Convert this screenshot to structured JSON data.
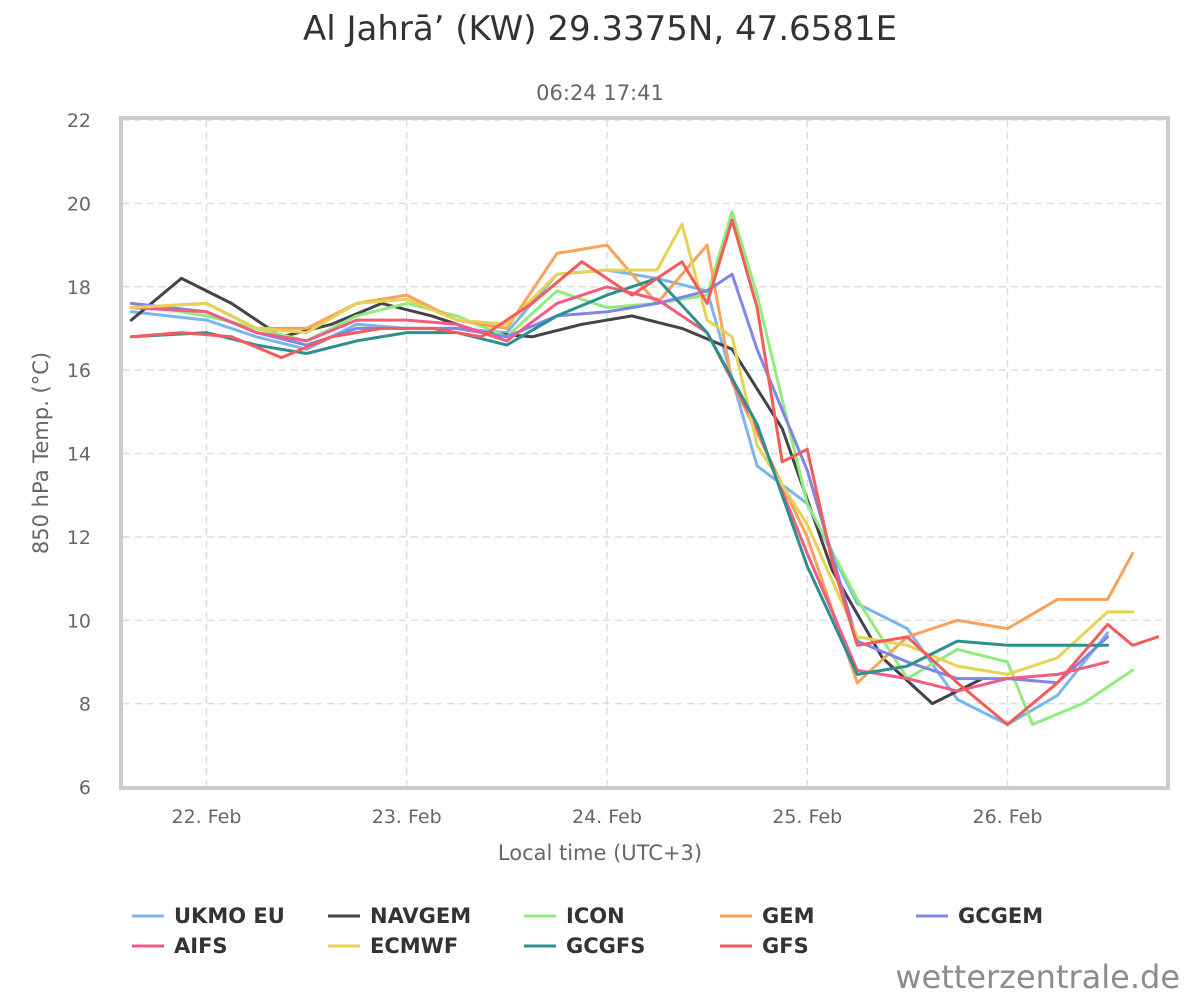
{
  "chart_data": {
    "type": "line",
    "title": "Al Jahrā’ (KW) 29.3375N, 47.6581E",
    "subtitle": "06:24 17:41",
    "xlabel": "Local time (UTC+3)",
    "ylabel": "850 hPa Temp. (°C)",
    "ylim": [
      6,
      22
    ],
    "yticks": [
      6,
      8,
      10,
      12,
      14,
      16,
      18,
      20,
      22
    ],
    "xlim": [
      "2024-02-21 14:00",
      "2024-02-26 19:00"
    ],
    "xticks": [
      {
        "x": "2024-02-22 00:00",
        "label": "22. Feb"
      },
      {
        "x": "2024-02-23 00:00",
        "label": "23. Feb"
      },
      {
        "x": "2024-02-24 00:00",
        "label": "24. Feb"
      },
      {
        "x": "2024-02-25 00:00",
        "label": "25. Feb"
      },
      {
        "x": "2024-02-26 00:00",
        "label": "26. Feb"
      }
    ],
    "grid": true,
    "legend_position": "bottom",
    "series": [
      {
        "name": "UKMO EU",
        "color": "#7cb5ec",
        "x": [
          "2024-02-21 15:00",
          "2024-02-22 00:00",
          "2024-02-22 06:00",
          "2024-02-22 12:00",
          "2024-02-22 18:00",
          "2024-02-23 00:00",
          "2024-02-23 06:00",
          "2024-02-23 12:00",
          "2024-02-23 18:00",
          "2024-02-24 00:00",
          "2024-02-24 06:00",
          "2024-02-24 12:00",
          "2024-02-24 18:00",
          "2024-02-25 00:00",
          "2024-02-25 06:00",
          "2024-02-25 12:00",
          "2024-02-25 18:00",
          "2024-02-26 00:00",
          "2024-02-26 06:00",
          "2024-02-26 12:00"
        ],
        "y": [
          17.4,
          17.2,
          16.8,
          16.5,
          17.1,
          17.0,
          17.0,
          16.9,
          18.3,
          18.4,
          18.2,
          17.9,
          13.7,
          12.8,
          10.4,
          9.8,
          8.1,
          7.5,
          8.2,
          9.7
        ]
      },
      {
        "name": "NAVGEM",
        "color": "#434348",
        "x": [
          "2024-02-21 15:00",
          "2024-02-21 21:00",
          "2024-02-22 03:00",
          "2024-02-22 09:00",
          "2024-02-22 15:00",
          "2024-02-22 21:00",
          "2024-02-23 03:00",
          "2024-02-23 09:00",
          "2024-02-23 15:00",
          "2024-02-23 21:00",
          "2024-02-24 03:00",
          "2024-02-24 09:00",
          "2024-02-24 15:00",
          "2024-02-24 21:00",
          "2024-02-25 03:00",
          "2024-02-25 09:00",
          "2024-02-25 15:00",
          "2024-02-25 21:00"
        ],
        "y": [
          17.2,
          18.2,
          17.6,
          16.8,
          17.1,
          17.6,
          17.3,
          16.9,
          16.8,
          17.1,
          17.3,
          17.0,
          16.5,
          14.6,
          11.2,
          9.1,
          8.0,
          8.6
        ]
      },
      {
        "name": "ICON",
        "color": "#90ed7d",
        "x": [
          "2024-02-21 15:00",
          "2024-02-22 00:00",
          "2024-02-22 06:00",
          "2024-02-22 12:00",
          "2024-02-22 18:00",
          "2024-02-23 00:00",
          "2024-02-23 06:00",
          "2024-02-23 12:00",
          "2024-02-23 18:00",
          "2024-02-24 00:00",
          "2024-02-24 06:00",
          "2024-02-24 12:00",
          "2024-02-24 15:00",
          "2024-02-24 18:00",
          "2024-02-25 00:00",
          "2024-02-25 06:00",
          "2024-02-25 12:00",
          "2024-02-25 18:00",
          "2024-02-26 00:00",
          "2024-02-26 03:00",
          "2024-02-26 09:00",
          "2024-02-26 15:00"
        ],
        "y": [
          17.6,
          17.3,
          17.0,
          16.7,
          17.3,
          17.6,
          17.3,
          16.8,
          17.9,
          17.5,
          17.6,
          17.8,
          19.8,
          17.8,
          12.8,
          10.5,
          8.6,
          9.3,
          9.0,
          7.5,
          8.0,
          8.8
        ]
      },
      {
        "name": "GEM",
        "color": "#f7a35c",
        "x": [
          "2024-02-21 15:00",
          "2024-02-22 00:00",
          "2024-02-22 06:00",
          "2024-02-22 12:00",
          "2024-02-22 18:00",
          "2024-02-23 00:00",
          "2024-02-23 06:00",
          "2024-02-23 12:00",
          "2024-02-23 18:00",
          "2024-02-24 00:00",
          "2024-02-24 06:00",
          "2024-02-24 12:00",
          "2024-02-24 15:00",
          "2024-02-24 18:00",
          "2024-02-25 00:00",
          "2024-02-25 06:00",
          "2024-02-25 12:00",
          "2024-02-25 18:00",
          "2024-02-26 00:00",
          "2024-02-26 06:00",
          "2024-02-26 12:00",
          "2024-02-26 15:00"
        ],
        "y": [
          17.5,
          17.6,
          17.0,
          17.0,
          17.6,
          17.8,
          17.2,
          17.0,
          18.8,
          19.0,
          17.6,
          19.0,
          15.7,
          14.5,
          12.0,
          8.5,
          9.6,
          10.0,
          9.8,
          10.5,
          10.5,
          11.6
        ]
      },
      {
        "name": "GCGEM",
        "color": "#8085e9",
        "x": [
          "2024-02-21 15:00",
          "2024-02-22 00:00",
          "2024-02-22 06:00",
          "2024-02-22 12:00",
          "2024-02-22 18:00",
          "2024-02-23 00:00",
          "2024-02-23 06:00",
          "2024-02-23 12:00",
          "2024-02-23 18:00",
          "2024-02-24 00:00",
          "2024-02-24 06:00",
          "2024-02-24 12:00",
          "2024-02-24 15:00",
          "2024-02-24 18:00",
          "2024-02-25 00:00",
          "2024-02-25 06:00",
          "2024-02-25 12:00",
          "2024-02-25 18:00",
          "2024-02-26 00:00",
          "2024-02-26 06:00",
          "2024-02-26 12:00"
        ],
        "y": [
          17.6,
          17.4,
          16.9,
          16.6,
          17.0,
          17.0,
          17.0,
          16.8,
          17.3,
          17.4,
          17.6,
          17.9,
          18.3,
          16.5,
          13.6,
          9.5,
          9.0,
          8.6,
          8.6,
          8.5,
          9.6
        ]
      },
      {
        "name": "AIFS",
        "color": "#f15c80",
        "x": [
          "2024-02-21 15:00",
          "2024-02-22 00:00",
          "2024-02-22 06:00",
          "2024-02-22 12:00",
          "2024-02-22 18:00",
          "2024-02-23 00:00",
          "2024-02-23 06:00",
          "2024-02-23 12:00",
          "2024-02-23 18:00",
          "2024-02-24 00:00",
          "2024-02-24 06:00",
          "2024-02-24 12:00",
          "2024-02-24 18:00",
          "2024-02-25 00:00",
          "2024-02-25 06:00",
          "2024-02-25 12:00",
          "2024-02-25 18:00",
          "2024-02-26 00:00",
          "2024-02-26 06:00",
          "2024-02-26 12:00"
        ],
        "y": [
          17.5,
          17.4,
          16.9,
          16.7,
          17.2,
          17.2,
          17.1,
          16.7,
          17.6,
          18.0,
          17.7,
          16.9,
          14.6,
          11.6,
          8.8,
          8.6,
          8.3,
          8.6,
          8.7,
          9.0
        ]
      },
      {
        "name": "ECMWF",
        "color": "#e4d354",
        "x": [
          "2024-02-21 15:00",
          "2024-02-22 00:00",
          "2024-02-22 06:00",
          "2024-02-22 12:00",
          "2024-02-22 18:00",
          "2024-02-23 00:00",
          "2024-02-23 06:00",
          "2024-02-23 12:00",
          "2024-02-23 18:00",
          "2024-02-24 00:00",
          "2024-02-24 06:00",
          "2024-02-24 09:00",
          "2024-02-24 12:00",
          "2024-02-24 15:00",
          "2024-02-24 18:00",
          "2024-02-25 00:00",
          "2024-02-25 06:00",
          "2024-02-25 12:00",
          "2024-02-25 18:00",
          "2024-02-26 00:00",
          "2024-02-26 06:00",
          "2024-02-26 12:00",
          "2024-02-26 15:00"
        ],
        "y": [
          17.5,
          17.6,
          17.0,
          16.9,
          17.6,
          17.7,
          17.2,
          17.1,
          18.3,
          18.4,
          18.4,
          19.5,
          17.2,
          16.8,
          14.2,
          12.3,
          9.6,
          9.4,
          8.9,
          8.7,
          9.1,
          10.2,
          10.2
        ]
      },
      {
        "name": "GCGFS",
        "color": "#2b908f",
        "x": [
          "2024-02-21 15:00",
          "2024-02-22 00:00",
          "2024-02-22 06:00",
          "2024-02-22 12:00",
          "2024-02-22 18:00",
          "2024-02-23 00:00",
          "2024-02-23 06:00",
          "2024-02-23 12:00",
          "2024-02-23 18:00",
          "2024-02-24 00:00",
          "2024-02-24 06:00",
          "2024-02-24 12:00",
          "2024-02-24 18:00",
          "2024-02-25 00:00",
          "2024-02-25 06:00",
          "2024-02-25 12:00",
          "2024-02-25 18:00",
          "2024-02-26 00:00",
          "2024-02-26 06:00",
          "2024-02-26 12:00"
        ],
        "y": [
          16.8,
          16.9,
          16.6,
          16.4,
          16.7,
          16.9,
          16.9,
          16.6,
          17.3,
          17.8,
          18.2,
          16.9,
          14.7,
          11.3,
          8.7,
          8.9,
          9.5,
          9.4,
          9.4,
          9.4
        ]
      },
      {
        "name": "GFS",
        "color": "#f45b5b",
        "x": [
          "2024-02-21 15:00",
          "2024-02-21 21:00",
          "2024-02-22 03:00",
          "2024-02-22 09:00",
          "2024-02-22 15:00",
          "2024-02-22 21:00",
          "2024-02-23 03:00",
          "2024-02-23 09:00",
          "2024-02-23 15:00",
          "2024-02-23 21:00",
          "2024-02-24 03:00",
          "2024-02-24 09:00",
          "2024-02-24 12:00",
          "2024-02-24 15:00",
          "2024-02-24 18:00",
          "2024-02-24 21:00",
          "2024-02-25 00:00",
          "2024-02-25 03:00",
          "2024-02-25 06:00",
          "2024-02-25 12:00",
          "2024-02-25 18:00",
          "2024-02-26 00:00",
          "2024-02-26 06:00",
          "2024-02-26 12:00",
          "2024-02-26 15:00",
          "2024-02-26 18:00"
        ],
        "y": [
          16.8,
          16.9,
          16.8,
          16.3,
          16.8,
          17.0,
          17.0,
          16.8,
          17.6,
          18.6,
          17.8,
          18.6,
          17.6,
          19.6,
          17.5,
          13.8,
          14.1,
          11.4,
          9.4,
          9.6,
          8.5,
          7.5,
          8.5,
          9.9,
          9.4,
          9.6
        ]
      }
    ]
  },
  "credit": "wetterzentrale.de"
}
